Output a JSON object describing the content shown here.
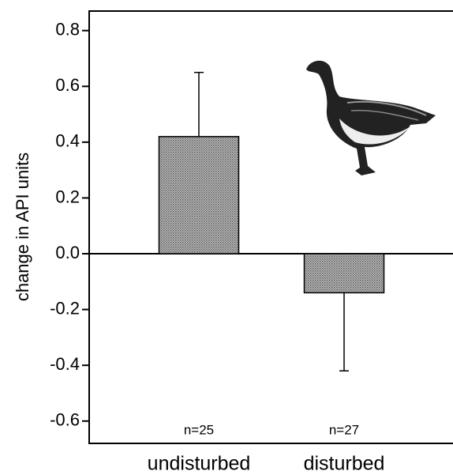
{
  "chart_data": {
    "type": "bar",
    "y_label": "change in API units",
    "categories": [
      "undisturbed",
      "disturbed"
    ],
    "values": [
      0.42,
      -0.14
    ],
    "errors": [
      0.23,
      0.28
    ],
    "annotations": [
      "n=25",
      "n=27"
    ],
    "color": "#9a9a9a",
    "ylim": [
      -0.68,
      0.87
    ],
    "yticks": [
      0.8,
      0.6,
      0.4,
      0.2,
      {
        "value": 0,
        "label": "0.0"
      },
      -0.2,
      -0.4,
      -0.6
    ]
  }
}
